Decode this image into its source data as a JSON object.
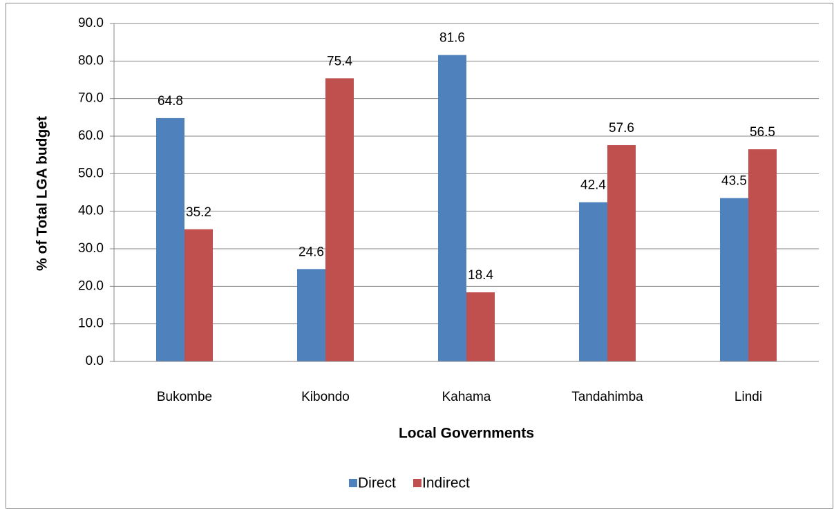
{
  "chart_data": {
    "type": "bar",
    "y_label": "% of Total LGA budget",
    "x_label": "Local Governments",
    "categories": [
      "Bukombe",
      "Kibondo",
      "Kahama",
      "Tandahimba",
      "Lindi"
    ],
    "series": [
      {
        "name": "Direct",
        "color": "#4f81bd",
        "values": [
          64.8,
          24.6,
          81.6,
          42.4,
          43.5
        ]
      },
      {
        "name": "Indirect",
        "color": "#c0504d",
        "values": [
          35.2,
          75.4,
          18.4,
          57.6,
          56.5
        ]
      }
    ],
    "ylim": [
      0,
      90
    ],
    "yticks": [
      {
        "value": 0,
        "label": "0.0"
      },
      {
        "value": 10,
        "label": "10.0"
      },
      {
        "value": 20,
        "label": "20.0"
      },
      {
        "value": 30,
        "label": "30.0"
      },
      {
        "value": 40,
        "label": "40.0"
      },
      {
        "value": 50,
        "label": "50.0"
      },
      {
        "value": 60,
        "label": "60.0"
      },
      {
        "value": 70,
        "label": "70.0"
      },
      {
        "value": 80,
        "label": "80.0"
      },
      {
        "value": 90,
        "label": "90.0"
      }
    ],
    "grid": true,
    "legend": "bottom"
  }
}
